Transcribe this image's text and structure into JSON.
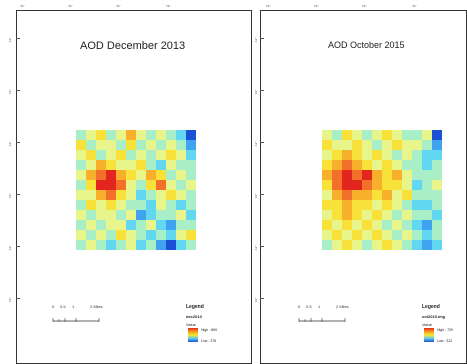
{
  "maps": [
    {
      "title": "AOD December 2013",
      "coord_ticks": [
        "74°",
        "74°",
        "74°",
        "74°"
      ],
      "lat_ticks": [
        "12°",
        "12°",
        "12°",
        "12°",
        "12°",
        "12°"
      ],
      "scale_labels": [
        "0",
        "0.5",
        "1",
        "2 Miles"
      ],
      "legend": {
        "heading": "Legend",
        "layer": "dec2013",
        "value_label": "Value",
        "high": "High : 869",
        "low": "Low : 276"
      }
    },
    {
      "title": "AOD October 2015",
      "coord_ticks": [
        "74°",
        "74°",
        "74°",
        "74°"
      ],
      "lat_ticks": [
        "12°",
        "12°",
        "12°",
        "12°",
        "12°",
        "12°"
      ],
      "scale_labels": [
        "0",
        "0.5",
        "1",
        "2 Miles"
      ],
      "legend": {
        "heading": "Legend",
        "layer": "oct2015.img",
        "value_label": "Value",
        "high": "High : 729",
        "low": "Low : 312"
      }
    }
  ],
  "palette": [
    "#1b4fd6",
    "#3fa3f0",
    "#62d7f2",
    "#a8efc8",
    "#e8f58a",
    "#f8e23a",
    "#f8b02c",
    "#f2702a",
    "#e2261e"
  ],
  "grids": [
    [
      [
        3,
        4,
        5,
        3,
        4,
        6,
        4,
        3,
        4,
        3,
        2,
        0
      ],
      [
        5,
        3,
        4,
        4,
        3,
        5,
        3,
        4,
        3,
        4,
        3,
        1
      ],
      [
        4,
        5,
        3,
        4,
        5,
        3,
        4,
        3,
        4,
        5,
        4,
        2
      ],
      [
        3,
        4,
        6,
        5,
        4,
        4,
        5,
        3,
        2,
        4,
        3,
        3
      ],
      [
        4,
        6,
        7,
        8,
        6,
        5,
        4,
        6,
        5,
        3,
        4,
        3
      ],
      [
        3,
        5,
        8,
        8,
        7,
        4,
        3,
        5,
        7,
        4,
        3,
        4
      ],
      [
        4,
        4,
        6,
        7,
        5,
        4,
        2,
        3,
        4,
        5,
        4,
        3
      ],
      [
        3,
        5,
        4,
        5,
        4,
        3,
        3,
        2,
        4,
        3,
        2,
        3
      ],
      [
        4,
        3,
        4,
        4,
        3,
        4,
        1,
        2,
        3,
        3,
        4,
        2
      ],
      [
        3,
        4,
        3,
        4,
        4,
        2,
        3,
        4,
        2,
        1,
        3,
        3
      ],
      [
        4,
        3,
        4,
        3,
        5,
        4,
        3,
        2,
        3,
        2,
        4,
        5
      ],
      [
        3,
        4,
        3,
        2,
        3,
        4,
        2,
        3,
        1,
        0,
        2,
        3
      ]
    ],
    [
      [
        4,
        3,
        5,
        4,
        3,
        4,
        5,
        4,
        3,
        3,
        4,
        0
      ],
      [
        5,
        4,
        4,
        5,
        4,
        3,
        4,
        5,
        4,
        4,
        3,
        1
      ],
      [
        4,
        5,
        6,
        5,
        4,
        5,
        4,
        3,
        4,
        3,
        2,
        2
      ],
      [
        5,
        6,
        7,
        6,
        5,
        4,
        5,
        4,
        3,
        3,
        2,
        3
      ],
      [
        6,
        7,
        8,
        7,
        8,
        6,
        5,
        6,
        4,
        3,
        3,
        3
      ],
      [
        5,
        7,
        8,
        8,
        7,
        6,
        5,
        5,
        4,
        2,
        3,
        4
      ],
      [
        4,
        6,
        7,
        6,
        6,
        5,
        6,
        4,
        5,
        3,
        3,
        3
      ],
      [
        5,
        5,
        6,
        5,
        5,
        4,
        5,
        4,
        3,
        2,
        2,
        3
      ],
      [
        4,
        5,
        6,
        5,
        4,
        5,
        4,
        3,
        4,
        3,
        3,
        2
      ],
      [
        5,
        4,
        5,
        4,
        5,
        4,
        3,
        4,
        3,
        2,
        1,
        3
      ],
      [
        4,
        5,
        4,
        5,
        4,
        5,
        4,
        3,
        4,
        3,
        2,
        3
      ],
      [
        3,
        4,
        5,
        4,
        3,
        4,
        5,
        4,
        3,
        2,
        1,
        2
      ]
    ]
  ]
}
